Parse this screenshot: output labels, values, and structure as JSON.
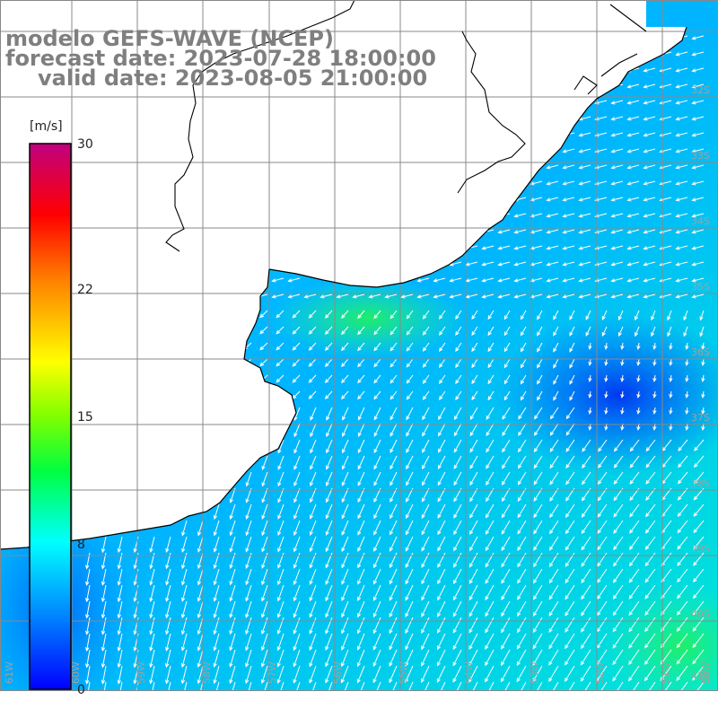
{
  "title": {
    "model": "modelo GEFS-WAVE (NCEP)",
    "forecast": "forecast date: 2023-07-28 18:00:00",
    "valid": "valid date: 2023-08-05 21:00:00"
  },
  "colorbar": {
    "unit": "[m/s]",
    "ticks": [
      {
        "label": "30",
        "value": 30
      },
      {
        "label": "22",
        "value": 22
      },
      {
        "label": "15",
        "value": 15
      },
      {
        "label": "8",
        "value": 8
      },
      {
        "label": "0",
        "value": 0
      }
    ],
    "colors": [
      "#0000ff",
      "#00a0ff",
      "#00ffff",
      "#00ff40",
      "#7fff00",
      "#ffff00",
      "#ff8000",
      "#ff0000",
      "#c00080"
    ]
  },
  "map": {
    "lon_labels": [
      "61W",
      "60W",
      "59W",
      "58W",
      "57W",
      "56W",
      "55W",
      "54W",
      "53W",
      "52W",
      "51W",
      "50W"
    ],
    "lat_labels": [
      "32S",
      "33S",
      "34S",
      "35S",
      "36S",
      "37S",
      "38S",
      "39S",
      "40S",
      "41S"
    ],
    "land_color": "#ffffff",
    "arrow_color": "#ffffff"
  }
}
